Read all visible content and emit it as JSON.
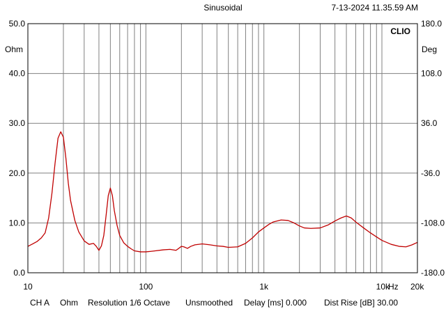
{
  "header": {
    "mode": "Sinusoidal",
    "timestamp": "7-13-2024 11.35.59 AM"
  },
  "footer": {
    "channel": "CH A",
    "unit": "Ohm",
    "resolution": "Resolution 1/6 Octave",
    "smoothing": "Unsmoothed",
    "delay": "Delay [ms] 0.000",
    "dist_rise": "Dist Rise [dB] 30.00"
  },
  "colors": {
    "curve": "#c00000",
    "grid": "#808080",
    "frame": "#000000"
  },
  "chart_data": {
    "type": "line",
    "title": "",
    "brand": "CLIO",
    "xscale": "log",
    "xlim": [
      10,
      20000
    ],
    "ylim": [
      0,
      50
    ],
    "y2lim": [
      -180,
      180
    ],
    "ylabel": "Ohm",
    "y2label": "Deg",
    "grid": true,
    "x_ticks": [
      {
        "value": 10,
        "label": "10"
      },
      {
        "value": 100,
        "label": "100"
      },
      {
        "value": 1000,
        "label": "1k"
      },
      {
        "value": 10000,
        "label": "10k"
      },
      {
        "value": 20000,
        "label": "20k"
      }
    ],
    "x_unit_label": "Hz",
    "y_ticks": [
      {
        "value": 0,
        "label": "0.0"
      },
      {
        "value": 10,
        "label": "10.0"
      },
      {
        "value": 20,
        "label": "20.0"
      },
      {
        "value": 30,
        "label": "30.0"
      },
      {
        "value": 40,
        "label": "40.0"
      },
      {
        "value": 50,
        "label": "50.0"
      }
    ],
    "y2_ticks": [
      {
        "value": -180,
        "label": "-180.0"
      },
      {
        "value": -108,
        "label": "-108.0"
      },
      {
        "value": -36,
        "label": "-36.0"
      },
      {
        "value": 36,
        "label": "36.0"
      },
      {
        "value": 108,
        "label": "108.0"
      },
      {
        "value": 180,
        "label": "180.0"
      }
    ],
    "series": [
      {
        "color": "#c00000",
        "x": [
          10,
          11,
          12,
          13,
          14,
          15,
          16,
          17,
          18,
          19,
          20,
          21,
          22,
          23,
          25,
          27,
          30,
          33,
          36,
          38,
          40,
          42,
          44,
          46,
          48,
          50,
          52,
          54,
          57,
          60,
          65,
          70,
          75,
          80,
          90,
          100,
          110,
          120,
          140,
          160,
          180,
          190,
          200,
          210,
          225,
          240,
          260,
          300,
          350,
          400,
          450,
          500,
          600,
          700,
          800,
          900,
          1000,
          1100,
          1200,
          1400,
          1600,
          1800,
          2000,
          2200,
          2500,
          3000,
          3500,
          4000,
          4500,
          5000,
          5500,
          6000,
          7000,
          8000,
          9000,
          10000,
          12000,
          14000,
          16000,
          18000,
          20000
        ],
        "y": [
          5.3,
          5.8,
          6.3,
          7.0,
          8.0,
          11.0,
          16.0,
          22.0,
          27.0,
          28.3,
          27.2,
          23.0,
          18.0,
          14.5,
          10.5,
          8.2,
          6.4,
          5.7,
          5.9,
          5.3,
          4.5,
          5.4,
          7.5,
          11.5,
          15.5,
          17.0,
          15.5,
          12.5,
          9.5,
          7.5,
          6.0,
          5.3,
          4.8,
          4.4,
          4.2,
          4.2,
          4.3,
          4.4,
          4.6,
          4.7,
          4.5,
          4.9,
          5.3,
          5.2,
          4.9,
          5.3,
          5.6,
          5.8,
          5.6,
          5.4,
          5.3,
          5.1,
          5.2,
          5.9,
          7.0,
          8.2,
          9.0,
          9.7,
          10.2,
          10.6,
          10.5,
          10.0,
          9.4,
          9.0,
          8.9,
          9.0,
          9.6,
          10.4,
          11.0,
          11.4,
          11.0,
          10.2,
          9.0,
          8.0,
          7.2,
          6.5,
          5.7,
          5.3,
          5.2,
          5.6,
          6.1
        ]
      }
    ]
  }
}
